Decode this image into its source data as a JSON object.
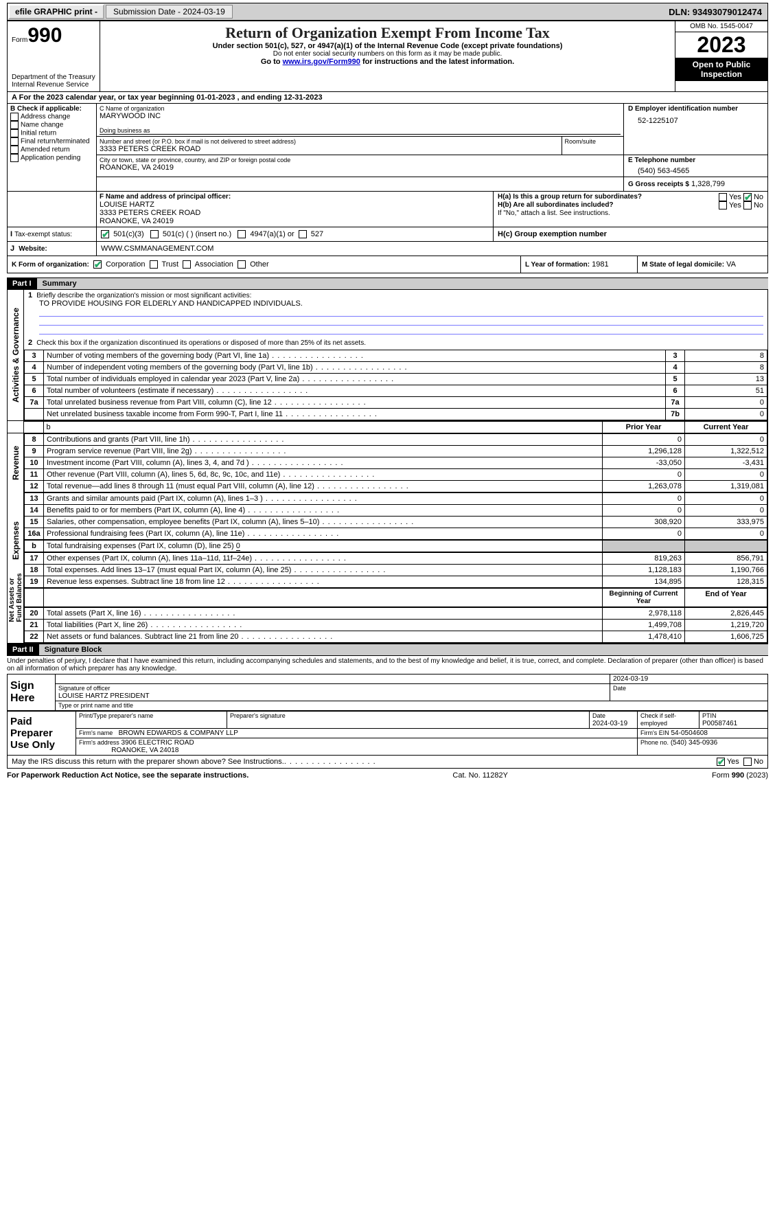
{
  "topbar": {
    "efile": "efile GRAPHIC print -",
    "submission": "Submission Date - 2024-03-19",
    "dln": "DLN: 93493079012474"
  },
  "header": {
    "form_label": "Form",
    "form_number": "990",
    "dept": "Department of the Treasury\nInternal Revenue Service",
    "title": "Return of Organization Exempt From Income Tax",
    "subtitle": "Under section 501(c), 527, or 4947(a)(1) of the Internal Revenue Code (except private foundations)",
    "note1": "Do not enter social security numbers on this form as it may be made public.",
    "note2_pre": "Go to ",
    "note2_link": "www.irs.gov/Form990",
    "note2_post": " for instructions and the latest information.",
    "omb": "OMB No. 1545-0047",
    "year": "2023",
    "open": "Open to Public Inspection"
  },
  "a_line": "For the 2023 calendar year, or tax year beginning 01-01-2023    , and ending 12-31-2023",
  "boxB": {
    "label": "B Check if applicable:",
    "items": [
      "Address change",
      "Name change",
      "Initial return",
      "Final return/terminated",
      "Amended return",
      "Application pending"
    ]
  },
  "boxC": {
    "name_label": "C Name of organization",
    "name": "MARYWOOD INC",
    "dba_label": "Doing business as",
    "addr_label": "Number and street (or P.O. box if mail is not delivered to street address)",
    "room_label": "Room/suite",
    "addr": "3333 PETERS CREEK ROAD",
    "city_label": "City or town, state or province, country, and ZIP or foreign postal code",
    "city": "ROANOKE, VA  24019"
  },
  "boxD": {
    "label": "D Employer identification number",
    "val": "52-1225107"
  },
  "boxE": {
    "label": "E Telephone number",
    "val": "(540) 563-4565"
  },
  "boxG": {
    "label": "G Gross receipts $",
    "val": "1,328,799"
  },
  "boxF": {
    "label": "F  Name and address of principal officer:",
    "l1": "LOUISE HARTZ",
    "l2": "3333 PETERS CREEK ROAD",
    "l3": "ROANOKE, VA  24019"
  },
  "boxH": {
    "a_label": "H(a)  Is this a group return for subordinates?",
    "b_label": "H(b)  Are all subordinates included?",
    "b_note": "If \"No,\" attach a list. See instructions.",
    "c_label": "H(c)  Group exemption number"
  },
  "taxexempt": {
    "label": "Tax-exempt status:",
    "c3": "501(c)(3)",
    "c": "501(c) (  ) (insert no.)",
    "a1": "4947(a)(1) or",
    "s527": "527"
  },
  "website": {
    "label": "Website:",
    "val": "WWW.CSMMANAGEMENT.COM"
  },
  "boxJ": "J",
  "boxK": {
    "label": "K Form of organization:",
    "opts": [
      "Corporation",
      "Trust",
      "Association",
      "Other"
    ]
  },
  "boxL": {
    "label": "L Year of formation:",
    "val": "1981"
  },
  "boxM": {
    "label": "M State of legal domicile:",
    "val": "VA"
  },
  "part1": {
    "hdr": "Part I",
    "title": "Summary"
  },
  "mission": {
    "label": "Briefly describe the organization's mission or most significant activities:",
    "text": "TO PROVIDE HOUSING FOR ELDERLY AND HANDICAPPED INDIVIDUALS."
  },
  "line2": "Check this box      if the organization discontinued its operations or disposed of more than 25% of its net assets.",
  "gov_rows": [
    {
      "n": "3",
      "t": "Number of voting members of the governing body (Part VI, line 1a)",
      "r": "3",
      "v": "8"
    },
    {
      "n": "4",
      "t": "Number of independent voting members of the governing body (Part VI, line 1b)",
      "r": "4",
      "v": "8"
    },
    {
      "n": "5",
      "t": "Total number of individuals employed in calendar year 2023 (Part V, line 2a)",
      "r": "5",
      "v": "13"
    },
    {
      "n": "6",
      "t": "Total number of volunteers (estimate if necessary)",
      "r": "6",
      "v": "51"
    },
    {
      "n": "7a",
      "t": "Total unrelated business revenue from Part VIII, column (C), line 12",
      "r": "7a",
      "v": "0"
    },
    {
      "n": "",
      "t": "Net unrelated business taxable income from Form 990-T, Part I, line 11",
      "r": "7b",
      "v": "0"
    }
  ],
  "col_hdrs": {
    "prior": "Prior Year",
    "current": "Current Year"
  },
  "revenue_rows": [
    {
      "n": "8",
      "t": "Contributions and grants (Part VIII, line 1h)",
      "p": "0",
      "c": "0"
    },
    {
      "n": "9",
      "t": "Program service revenue (Part VIII, line 2g)",
      "p": "1,296,128",
      "c": "1,322,512"
    },
    {
      "n": "10",
      "t": "Investment income (Part VIII, column (A), lines 3, 4, and 7d )",
      "p": "-33,050",
      "c": "-3,431"
    },
    {
      "n": "11",
      "t": "Other revenue (Part VIII, column (A), lines 5, 6d, 8c, 9c, 10c, and 11e)",
      "p": "0",
      "c": "0"
    },
    {
      "n": "12",
      "t": "Total revenue—add lines 8 through 11 (must equal Part VIII, column (A), line 12)",
      "p": "1,263,078",
      "c": "1,319,081"
    }
  ],
  "expense_rows": [
    {
      "n": "13",
      "t": "Grants and similar amounts paid (Part IX, column (A), lines 1–3 )",
      "p": "0",
      "c": "0"
    },
    {
      "n": "14",
      "t": "Benefits paid to or for members (Part IX, column (A), line 4)",
      "p": "0",
      "c": "0"
    },
    {
      "n": "15",
      "t": "Salaries, other compensation, employee benefits (Part IX, column (A), lines 5–10)",
      "p": "308,920",
      "c": "333,975"
    },
    {
      "n": "16a",
      "t": "Professional fundraising fees (Part IX, column (A), line 11e)",
      "p": "0",
      "c": "0"
    }
  ],
  "exp_16b_pre": "Total fundraising expenses (Part IX, column (D), line 25) ",
  "exp_16b_val": "0",
  "expense_rows2": [
    {
      "n": "17",
      "t": "Other expenses (Part IX, column (A), lines 11a–11d, 11f–24e)",
      "p": "819,263",
      "c": "856,791"
    },
    {
      "n": "18",
      "t": "Total expenses. Add lines 13–17 (must equal Part IX, column (A), line 25)",
      "p": "1,128,183",
      "c": "1,190,766"
    },
    {
      "n": "19",
      "t": "Revenue less expenses. Subtract line 18 from line 12",
      "p": "134,895",
      "c": "128,315"
    }
  ],
  "net_hdrs": {
    "begin": "Beginning of Current Year",
    "end": "End of Year"
  },
  "net_rows": [
    {
      "n": "20",
      "t": "Total assets (Part X, line 16)",
      "p": "2,978,118",
      "c": "2,826,445"
    },
    {
      "n": "21",
      "t": "Total liabilities (Part X, line 26)",
      "p": "1,499,708",
      "c": "1,219,720"
    },
    {
      "n": "22",
      "t": "Net assets or fund balances. Subtract line 21 from line 20",
      "p": "1,478,410",
      "c": "1,606,725"
    }
  ],
  "sides": {
    "gov": "Activities & Governance",
    "rev": "Revenue",
    "exp": "Expenses",
    "net": "Net Assets or\nFund Balances"
  },
  "part2": {
    "hdr": "Part II",
    "title": "Signature Block"
  },
  "perjury": "Under penalties of perjury, I declare that I have examined this return, including accompanying schedules and statements, and to the best of my knowledge and belief, it is true, correct, and complete. Declaration of preparer (other than officer) is based on all information of which preparer has any knowledge.",
  "sign": {
    "here": "Sign Here",
    "sig_label": "Signature of officer",
    "date_label": "Date",
    "date": "2024-03-19",
    "name": "LOUISE HARTZ  PRESIDENT",
    "type_label": "Type or print name and title"
  },
  "paid": {
    "here": "Paid Preparer Use Only",
    "pn_label": "Print/Type preparer's name",
    "ps_label": "Preparer's signature",
    "d_label": "Date",
    "d": "2024-03-19",
    "ck_label": "Check        if self-employed",
    "ptin_label": "PTIN",
    "ptin": "P00587461",
    "fn_label": "Firm's name",
    "fn": "BROWN EDWARDS & COMPANY LLP",
    "fein_label": "Firm's EIN",
    "fein": "54-0504608",
    "fa_label": "Firm's address",
    "fa1": "3906 ELECTRIC ROAD",
    "fa2": "ROANOKE, VA  24018",
    "ph_label": "Phone no.",
    "ph": "(540) 345-0936"
  },
  "discuss": "May the IRS discuss this return with the preparer shown above? See Instructions.",
  "footer": {
    "l": "For Paperwork Reduction Act Notice, see the separate instructions.",
    "m": "Cat. No. 11282Y",
    "r_pre": "Form ",
    "r_b": "990",
    "r_post": " (2023)"
  },
  "yes": "Yes",
  "no": "No",
  "b_lab": "b"
}
